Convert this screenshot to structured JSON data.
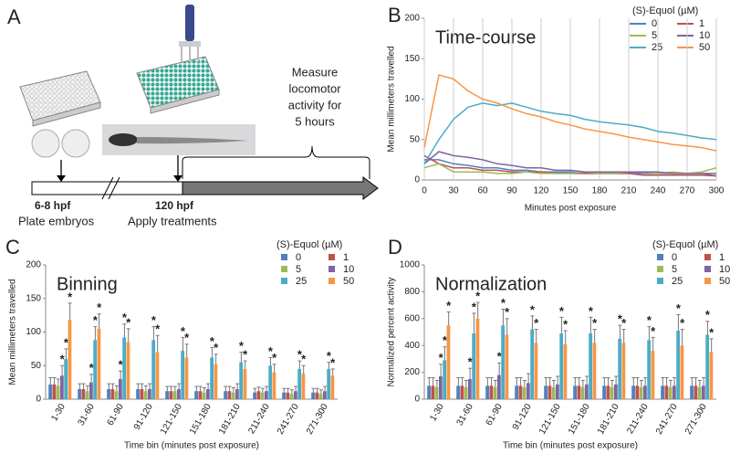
{
  "diagram": {
    "panel": "A",
    "measure_text": [
      "Measure",
      "locomotor",
      "activity for",
      "5 hours"
    ],
    "time_start": "6-8 hpf",
    "time_treat": "120 hpf",
    "step_start": "Plate embryos",
    "step_treat": "Apply treatments"
  },
  "chart_data": [
    {
      "type": "line",
      "panel": "B",
      "title": "Time-course",
      "x_label": "Minutes post exposure",
      "y_label": "Mean millimeters travelled",
      "legend_title": "(S)-Equol (µM)",
      "x": [
        0,
        15,
        30,
        45,
        60,
        75,
        90,
        105,
        120,
        135,
        150,
        165,
        180,
        195,
        210,
        225,
        240,
        255,
        270,
        285,
        300
      ],
      "xlim": [
        0,
        300
      ],
      "xticks": [
        0,
        30,
        60,
        90,
        120,
        150,
        180,
        210,
        240,
        270,
        300
      ],
      "ylim": [
        0,
        200
      ],
      "yticks": [
        0,
        50,
        100,
        150,
        200
      ],
      "grid": "x",
      "series": [
        {
          "name": "0",
          "color": "#4f81bd",
          "values": [
            25,
            25,
            20,
            18,
            15,
            15,
            12,
            12,
            10,
            10,
            10,
            8,
            8,
            8,
            8,
            8,
            8,
            8,
            8,
            8,
            5
          ]
        },
        {
          "name": "1",
          "color": "#c0504d",
          "values": [
            30,
            20,
            15,
            15,
            12,
            12,
            10,
            10,
            10,
            8,
            8,
            8,
            8,
            8,
            8,
            6,
            6,
            6,
            6,
            6,
            5
          ]
        },
        {
          "name": "5",
          "color": "#9bbb59",
          "values": [
            15,
            20,
            10,
            10,
            10,
            8,
            8,
            10,
            8,
            8,
            8,
            10,
            8,
            8,
            10,
            10,
            8,
            10,
            8,
            10,
            15
          ]
        },
        {
          "name": "10",
          "color": "#8064a2",
          "values": [
            20,
            35,
            30,
            28,
            25,
            20,
            18,
            15,
            15,
            12,
            12,
            10,
            10,
            10,
            10,
            10,
            10,
            8,
            8,
            8,
            8
          ]
        },
        {
          "name": "25",
          "color": "#4bacc6",
          "values": [
            20,
            50,
            75,
            90,
            95,
            92,
            95,
            90,
            85,
            82,
            80,
            75,
            72,
            70,
            68,
            65,
            60,
            58,
            55,
            52,
            50
          ]
        },
        {
          "name": "50",
          "color": "#f79646",
          "values": [
            40,
            130,
            125,
            110,
            100,
            95,
            88,
            82,
            78,
            72,
            68,
            63,
            60,
            57,
            53,
            50,
            47,
            44,
            42,
            40,
            36
          ]
        }
      ]
    },
    {
      "type": "bar",
      "panel": "C",
      "title": "Binning",
      "x_label": "Time bin (minutes post exposure)",
      "y_label": "Mean millimeters travelled",
      "legend_title": "(S)-Equol (µM)",
      "significance_marker": "*",
      "categories": [
        "1-30",
        "31-60",
        "61-90",
        "91-120",
        "121-150",
        "151-180",
        "181-210",
        "211-240",
        "241-270",
        "271-300"
      ],
      "ylim": [
        0,
        200
      ],
      "yticks": [
        0,
        50,
        100,
        150,
        200
      ],
      "series": [
        {
          "name": "0",
          "color": "#4f81bd",
          "values": [
            22,
            15,
            15,
            15,
            12,
            12,
            12,
            10,
            10,
            10
          ],
          "errors": [
            10,
            8,
            8,
            8,
            7,
            7,
            7,
            6,
            6,
            6
          ],
          "significant": [
            false,
            false,
            false,
            false,
            false,
            false,
            false,
            false,
            false,
            false
          ]
        },
        {
          "name": "1",
          "color": "#c0504d",
          "values": [
            22,
            15,
            15,
            15,
            12,
            12,
            12,
            12,
            10,
            10
          ],
          "errors": [
            10,
            8,
            8,
            8,
            7,
            7,
            7,
            6,
            6,
            6
          ],
          "significant": [
            false,
            false,
            false,
            false,
            false,
            false,
            false,
            false,
            false,
            false
          ]
        },
        {
          "name": "5",
          "color": "#9bbb59",
          "values": [
            20,
            12,
            12,
            12,
            12,
            10,
            10,
            10,
            8,
            8
          ],
          "errors": [
            10,
            8,
            8,
            8,
            7,
            7,
            7,
            6,
            6,
            6
          ],
          "significant": [
            false,
            false,
            false,
            false,
            false,
            false,
            false,
            false,
            false,
            false
          ]
        },
        {
          "name": "10",
          "color": "#8064a2",
          "values": [
            35,
            25,
            30,
            15,
            15,
            15,
            15,
            12,
            12,
            12
          ],
          "errors": [
            15,
            12,
            12,
            8,
            8,
            8,
            8,
            7,
            7,
            7
          ],
          "significant": [
            true,
            true,
            true,
            false,
            false,
            false,
            false,
            false,
            false,
            false
          ]
        },
        {
          "name": "25",
          "color": "#4bacc6",
          "values": [
            60,
            88,
            92,
            88,
            72,
            62,
            55,
            50,
            45,
            45
          ],
          "errors": [
            15,
            20,
            20,
            20,
            20,
            15,
            15,
            12,
            12,
            10
          ],
          "significant": [
            true,
            true,
            true,
            true,
            true,
            true,
            true,
            true,
            true,
            true
          ]
        },
        {
          "name": "50",
          "color": "#f79646",
          "values": [
            118,
            105,
            85,
            70,
            62,
            52,
            45,
            40,
            38,
            35
          ],
          "errors": [
            25,
            22,
            20,
            25,
            20,
            15,
            12,
            12,
            12,
            10
          ],
          "significant": [
            true,
            true,
            true,
            true,
            true,
            true,
            true,
            true,
            true,
            true
          ]
        }
      ]
    },
    {
      "type": "bar",
      "panel": "D",
      "title": "Normalization",
      "x_label": "Time bin (minutes post exposure)",
      "y_label": "Normalized percent activity",
      "legend_title": "(S)-Equol (µM)",
      "significance_marker": "*",
      "categories": [
        "1-30",
        "31-60",
        "61-90",
        "91-120",
        "121-150",
        "151-180",
        "181-210",
        "211-240",
        "241-270",
        "271-300"
      ],
      "ylim": [
        0,
        1000
      ],
      "yticks": [
        0,
        200,
        400,
        600,
        800,
        1000
      ],
      "series": [
        {
          "name": "0",
          "color": "#4f81bd",
          "values": [
            100,
            100,
            100,
            100,
            100,
            100,
            100,
            100,
            100,
            100
          ],
          "errors": [
            60,
            60,
            60,
            60,
            60,
            60,
            60,
            60,
            60,
            60
          ],
          "significant": [
            false,
            false,
            false,
            false,
            false,
            false,
            false,
            false,
            false,
            false
          ]
        },
        {
          "name": "1",
          "color": "#c0504d",
          "values": [
            100,
            100,
            100,
            100,
            100,
            100,
            100,
            100,
            100,
            100
          ],
          "errors": [
            60,
            60,
            60,
            60,
            60,
            60,
            60,
            60,
            60,
            60
          ],
          "significant": [
            false,
            false,
            false,
            false,
            false,
            false,
            false,
            false,
            false,
            false
          ]
        },
        {
          "name": "5",
          "color": "#9bbb59",
          "values": [
            90,
            90,
            90,
            90,
            90,
            90,
            90,
            90,
            90,
            90
          ],
          "errors": [
            50,
            50,
            50,
            50,
            50,
            50,
            50,
            50,
            50,
            50
          ],
          "significant": [
            false,
            false,
            false,
            false,
            false,
            false,
            false,
            false,
            false,
            false
          ]
        },
        {
          "name": "10",
          "color": "#8064a2",
          "values": [
            170,
            150,
            180,
            120,
            110,
            110,
            110,
            100,
            100,
            100
          ],
          "errors": [
            90,
            80,
            90,
            70,
            60,
            60,
            60,
            60,
            60,
            60
          ],
          "significant": [
            true,
            true,
            true,
            false,
            false,
            false,
            false,
            false,
            false,
            false
          ]
        },
        {
          "name": "25",
          "color": "#4bacc6",
          "values": [
            290,
            490,
            550,
            520,
            490,
            490,
            450,
            440,
            510,
            480
          ],
          "errors": [
            100,
            150,
            120,
            100,
            120,
            120,
            100,
            100,
            120,
            100
          ],
          "significant": [
            true,
            true,
            true,
            true,
            true,
            true,
            true,
            true,
            true,
            true
          ]
        },
        {
          "name": "50",
          "color": "#f79646",
          "values": [
            550,
            600,
            480,
            420,
            410,
            420,
            420,
            360,
            400,
            350
          ],
          "errors": [
            100,
            120,
            120,
            100,
            100,
            100,
            100,
            100,
            120,
            100
          ],
          "significant": [
            true,
            true,
            true,
            true,
            true,
            true,
            true,
            true,
            true,
            true
          ]
        }
      ]
    }
  ]
}
